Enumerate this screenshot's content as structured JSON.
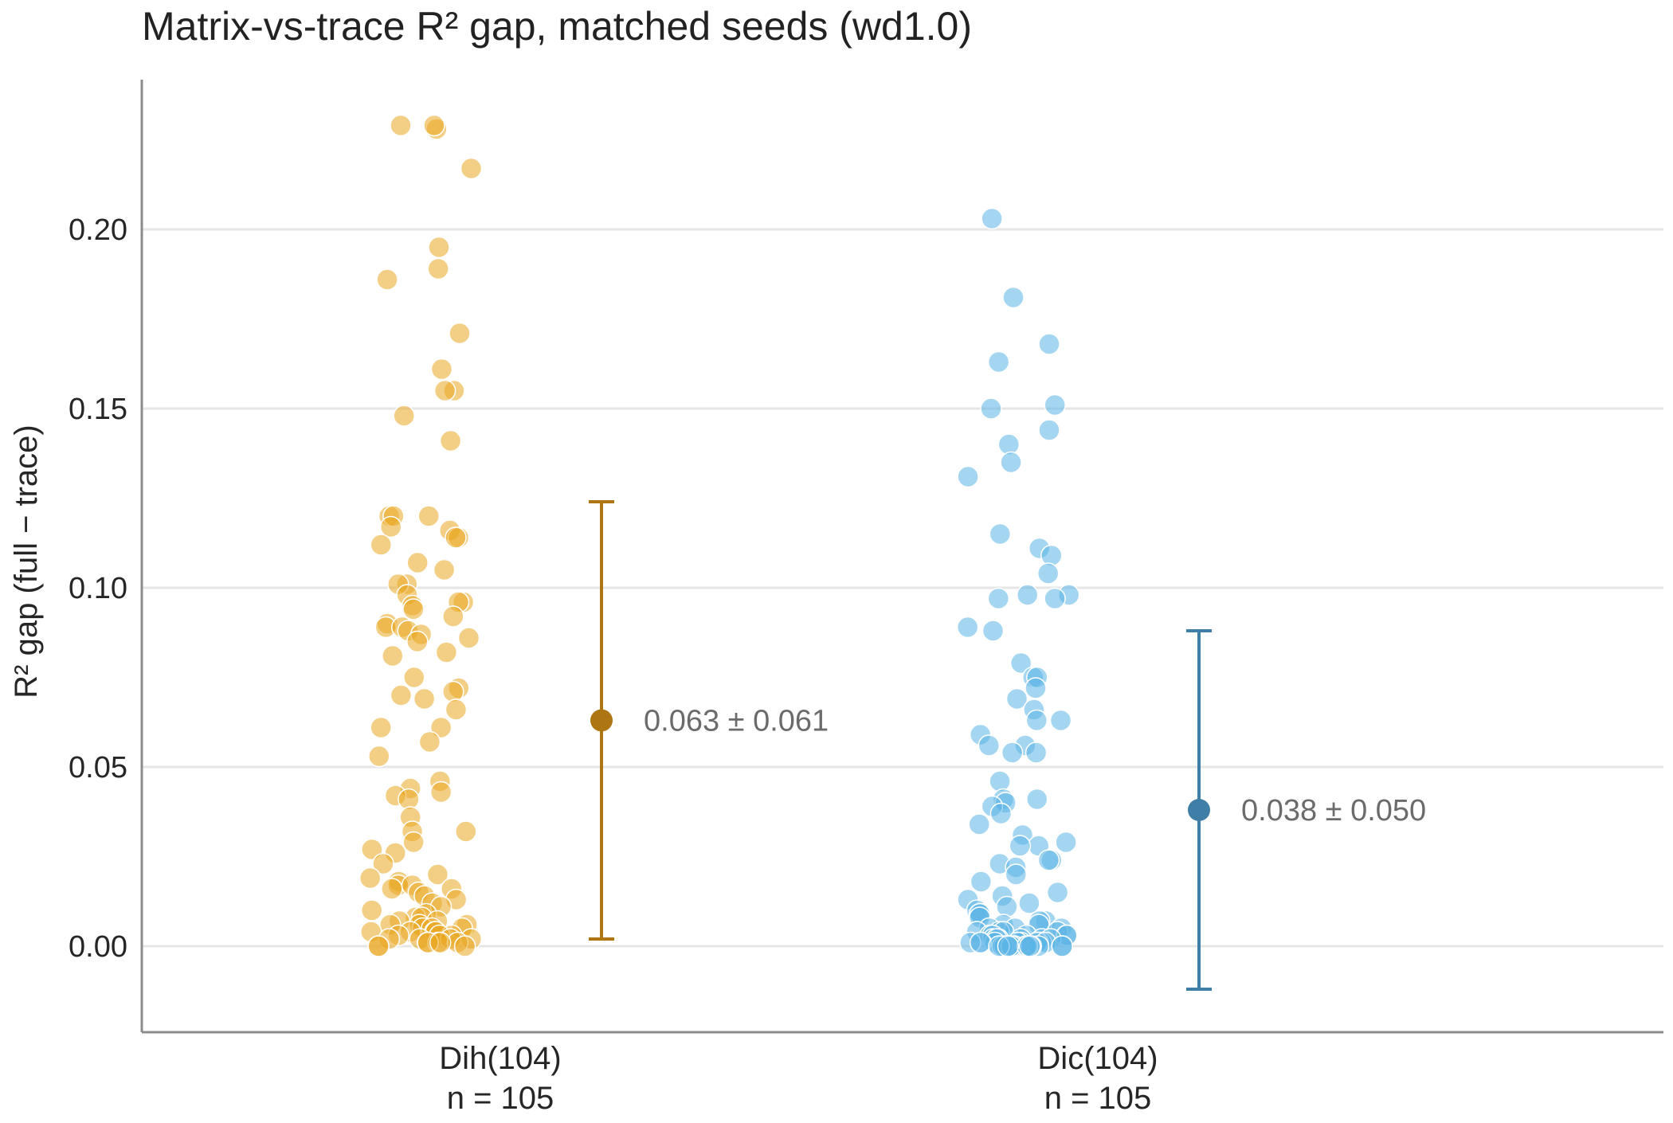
{
  "chart_data": {
    "type": "scatter",
    "title": "Matrix-vs-trace R² gap, matched seeds (wd1.0)",
    "xlabel": "",
    "ylabel": "R² gap (full − trace)",
    "ylim": [
      -0.024,
      0.241
    ],
    "yticks": [
      0.0,
      0.05,
      0.1,
      0.15,
      0.2
    ],
    "ytick_labels": [
      "0.00",
      "0.05",
      "0.10",
      "0.15",
      "0.20"
    ],
    "grid": "horizontal",
    "legend": "none",
    "groups": [
      {
        "category": "Dih(104)",
        "n_label": "n = 105",
        "color": "#E9A720",
        "summary_color": "#AE7613",
        "mean": 0.063,
        "sd": 0.061,
        "summary_label": "0.063 ± 0.061",
        "values": [
          0.228,
          0.229,
          0.229,
          0.217,
          0.195,
          0.189,
          0.186,
          0.171,
          0.161,
          0.155,
          0.155,
          0.148,
          0.141,
          0.12,
          0.12,
          0.12,
          0.117,
          0.116,
          0.114,
          0.114,
          0.112,
          0.107,
          0.105,
          0.101,
          0.101,
          0.098,
          0.096,
          0.096,
          0.095,
          0.094,
          0.092,
          0.09,
          0.089,
          0.089,
          0.088,
          0.087,
          0.086,
          0.085,
          0.082,
          0.081,
          0.075,
          0.072,
          0.071,
          0.07,
          0.069,
          0.066,
          0.061,
          0.061,
          0.057,
          0.053,
          0.046,
          0.044,
          0.043,
          0.042,
          0.041,
          0.036,
          0.032,
          0.032,
          0.029,
          0.027,
          0.026,
          0.023,
          0.02,
          0.019,
          0.018,
          0.017,
          0.017,
          0.016,
          0.016,
          0.015,
          0.014,
          0.013,
          0.012,
          0.011,
          0.01,
          0.009,
          0.008,
          0.008,
          0.007,
          0.007,
          0.006,
          0.006,
          0.006,
          0.005,
          0.005,
          0.005,
          0.004,
          0.004,
          0.004,
          0.004,
          0.003,
          0.003,
          0.003,
          0.002,
          0.002,
          0.002,
          0.002,
          0.001,
          0.001,
          0.001,
          0.001,
          0.001,
          0.0,
          0.0,
          0.0
        ]
      },
      {
        "category": "Dic(104)",
        "n_label": "n = 105",
        "color": "#5BB4E6",
        "summary_color": "#3F7EA7",
        "mean": 0.038,
        "sd": 0.05,
        "summary_label": "0.038 ± 0.050",
        "values": [
          0.203,
          0.181,
          0.168,
          0.163,
          0.151,
          0.15,
          0.144,
          0.14,
          0.135,
          0.131,
          0.115,
          0.111,
          0.109,
          0.104,
          0.098,
          0.098,
          0.097,
          0.097,
          0.089,
          0.088,
          0.079,
          0.075,
          0.075,
          0.072,
          0.069,
          0.066,
          0.063,
          0.063,
          0.059,
          0.056,
          0.056,
          0.054,
          0.054,
          0.046,
          0.041,
          0.041,
          0.04,
          0.039,
          0.037,
          0.034,
          0.031,
          0.029,
          0.028,
          0.028,
          0.024,
          0.024,
          0.023,
          0.022,
          0.02,
          0.018,
          0.015,
          0.014,
          0.013,
          0.012,
          0.011,
          0.01,
          0.009,
          0.009,
          0.008,
          0.007,
          0.007,
          0.006,
          0.006,
          0.005,
          0.005,
          0.005,
          0.004,
          0.004,
          0.004,
          0.004,
          0.003,
          0.003,
          0.003,
          0.003,
          0.003,
          0.002,
          0.002,
          0.002,
          0.002,
          0.002,
          0.002,
          0.001,
          0.001,
          0.001,
          0.001,
          0.001,
          0.001,
          0.001,
          0.001,
          0.001,
          0.001,
          0.0,
          0.0,
          0.0,
          0.0,
          0.0,
          0.0,
          0.0,
          0.0,
          0.0,
          0.0,
          0.0,
          0.0,
          0.0,
          0.0
        ]
      }
    ]
  }
}
